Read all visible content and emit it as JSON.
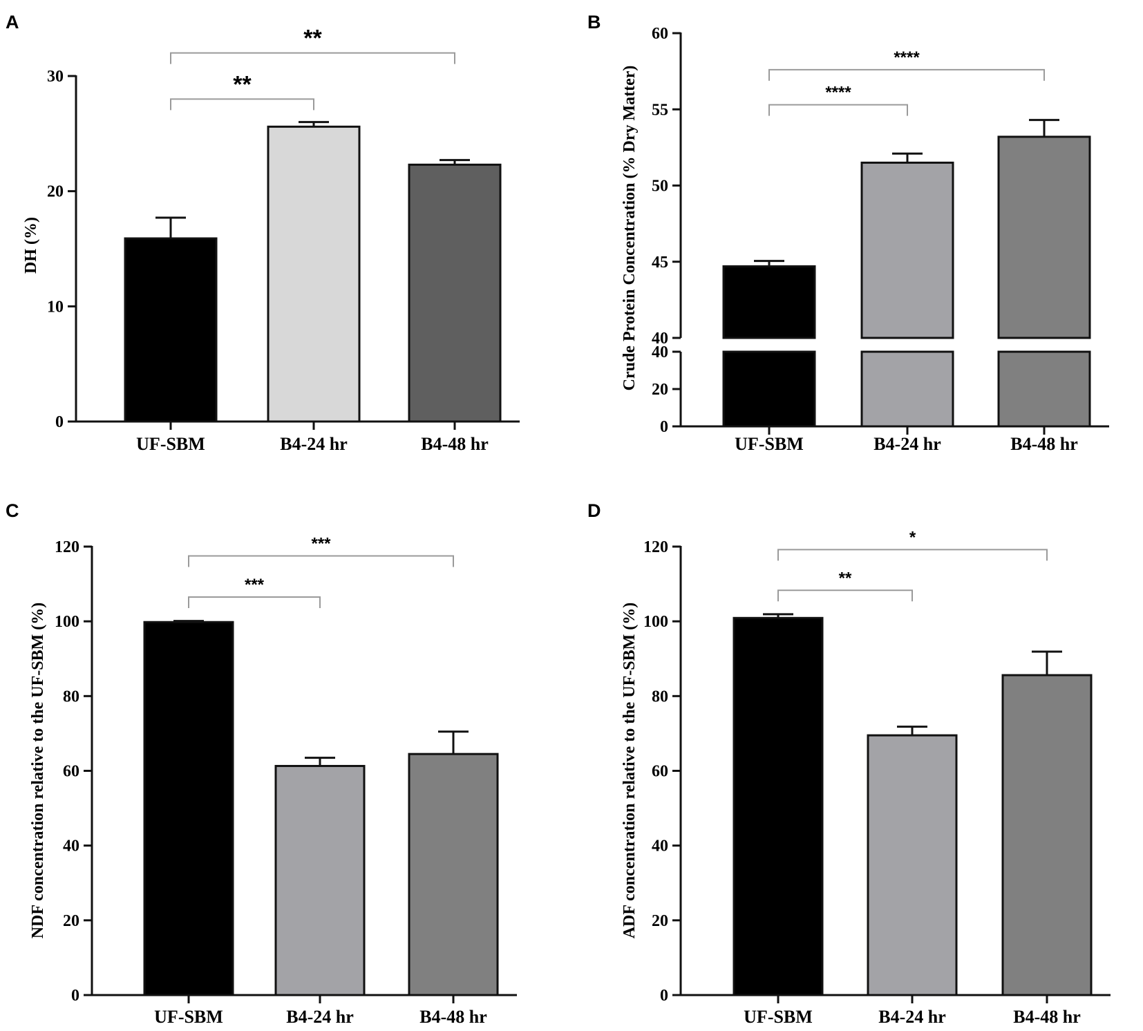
{
  "figure": {
    "chart_data": [
      {
        "panel": "A",
        "type": "bar",
        "categories": [
          "UF-SBM",
          "B4-24 hr",
          "B4-48 hr"
        ],
        "values": [
          15.9,
          25.6,
          22.3
        ],
        "errors": [
          1.8,
          0.4,
          0.4
        ],
        "colors": [
          "#000000",
          "#d8d8d8",
          "#5f5f5f"
        ],
        "ylabel": "DH (%)",
        "ylim": [
          0,
          30
        ],
        "yticks": [
          0,
          10,
          20,
          30
        ],
        "ytick_labels": [
          "0",
          "10",
          "20",
          "30"
        ],
        "significance": [
          {
            "from": 0,
            "to": 1,
            "label": "**",
            "level": 28.0
          },
          {
            "from": 0,
            "to": 2,
            "label": "**",
            "level": 32.0
          }
        ]
      },
      {
        "panel": "B",
        "type": "bar",
        "categories": [
          "UF-SBM",
          "B4-24 hr",
          "B4-48 hr"
        ],
        "values": [
          44.7,
          51.5,
          53.2
        ],
        "errors": [
          0.35,
          0.6,
          1.1
        ],
        "colors": [
          "#000000",
          "#a3a3a7",
          "#808080"
        ],
        "ylabel": "Crude Protein Concentration (% Dry Matter)",
        "ylim": [
          0,
          60
        ],
        "axis_break": {
          "lower": [
            0,
            40
          ],
          "upper": [
            40,
            60
          ]
        },
        "yticks_lower": [
          0,
          20,
          40
        ],
        "ytick_labels_lower": [
          "0",
          "20",
          "40"
        ],
        "yticks_upper": [
          40,
          45,
          50,
          55,
          60
        ],
        "ytick_labels_upper": [
          "40",
          "45",
          "50",
          "55",
          "60"
        ],
        "significance": [
          {
            "from": 0,
            "to": 1,
            "label": "****",
            "level": 55.3
          },
          {
            "from": 0,
            "to": 2,
            "label": "****",
            "level": 57.6
          }
        ]
      },
      {
        "panel": "C",
        "type": "bar",
        "categories": [
          "UF-SBM",
          "B4-24 hr",
          "B4-48 hr"
        ],
        "values": [
          99.8,
          61.3,
          64.5
        ],
        "errors": [
          0.3,
          2.2,
          6.0
        ],
        "colors": [
          "#000000",
          "#a3a3a7",
          "#808080"
        ],
        "ylabel": "NDF concentration relative to the UF-SBM (%)",
        "ylim": [
          0,
          120
        ],
        "yticks": [
          0,
          20,
          40,
          60,
          80,
          100,
          120
        ],
        "ytick_labels": [
          "0",
          "20",
          "40",
          "60",
          "80",
          "100",
          "120"
        ],
        "significance": [
          {
            "from": 0,
            "to": 1,
            "label": "***",
            "level": 106.5
          },
          {
            "from": 0,
            "to": 2,
            "label": "***",
            "level": 117.5
          }
        ]
      },
      {
        "panel": "D",
        "type": "bar",
        "categories": [
          "UF-SBM",
          "B4-24 hr",
          "B4-48 hr"
        ],
        "values": [
          100.9,
          69.5,
          85.6
        ],
        "errors": [
          1.0,
          2.3,
          6.3
        ],
        "colors": [
          "#000000",
          "#a3a3a7",
          "#808080"
        ],
        "ylabel": "ADF concentration relative to the UF-SBM (%)",
        "ylim": [
          0,
          120
        ],
        "yticks": [
          0,
          20,
          40,
          60,
          80,
          100,
          120
        ],
        "ytick_labels": [
          "0",
          "20",
          "40",
          "60",
          "80",
          "100",
          "120"
        ],
        "significance": [
          {
            "from": 0,
            "to": 1,
            "label": "**",
            "level": 108.3
          },
          {
            "from": 0,
            "to": 2,
            "label": "*",
            "level": 119.2
          }
        ]
      }
    ]
  }
}
